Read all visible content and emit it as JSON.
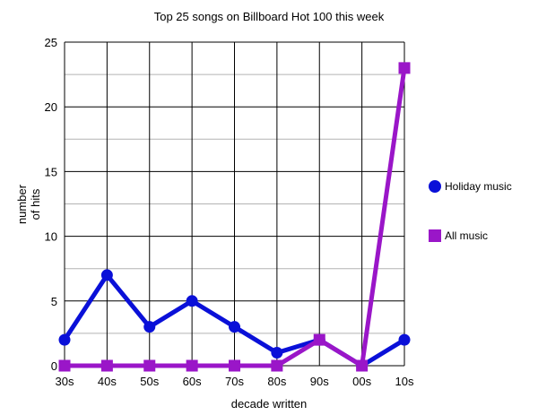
{
  "chart_data": {
    "type": "line",
    "title": "Top 25 songs on Billboard Hot 100 this week",
    "xlabel": "decade written",
    "ylabel": [
      "number",
      "of hits"
    ],
    "categories": [
      "30s",
      "40s",
      "50s",
      "60s",
      "70s",
      "80s",
      "90s",
      "00s",
      "10s"
    ],
    "ylim": [
      0,
      25
    ],
    "yticks": [
      0,
      5,
      10,
      15,
      20,
      25
    ],
    "grid": true,
    "legend_position": "right",
    "series": [
      {
        "name": "Holiday music",
        "values": [
          2,
          7,
          3,
          5,
          3,
          1,
          2,
          0,
          2
        ],
        "color": "#0a10d8",
        "marker": "circle"
      },
      {
        "name": "All music",
        "values": [
          0,
          0,
          0,
          0,
          0,
          0,
          2,
          0,
          23
        ],
        "color": "#9a16c8",
        "marker": "square"
      }
    ]
  }
}
